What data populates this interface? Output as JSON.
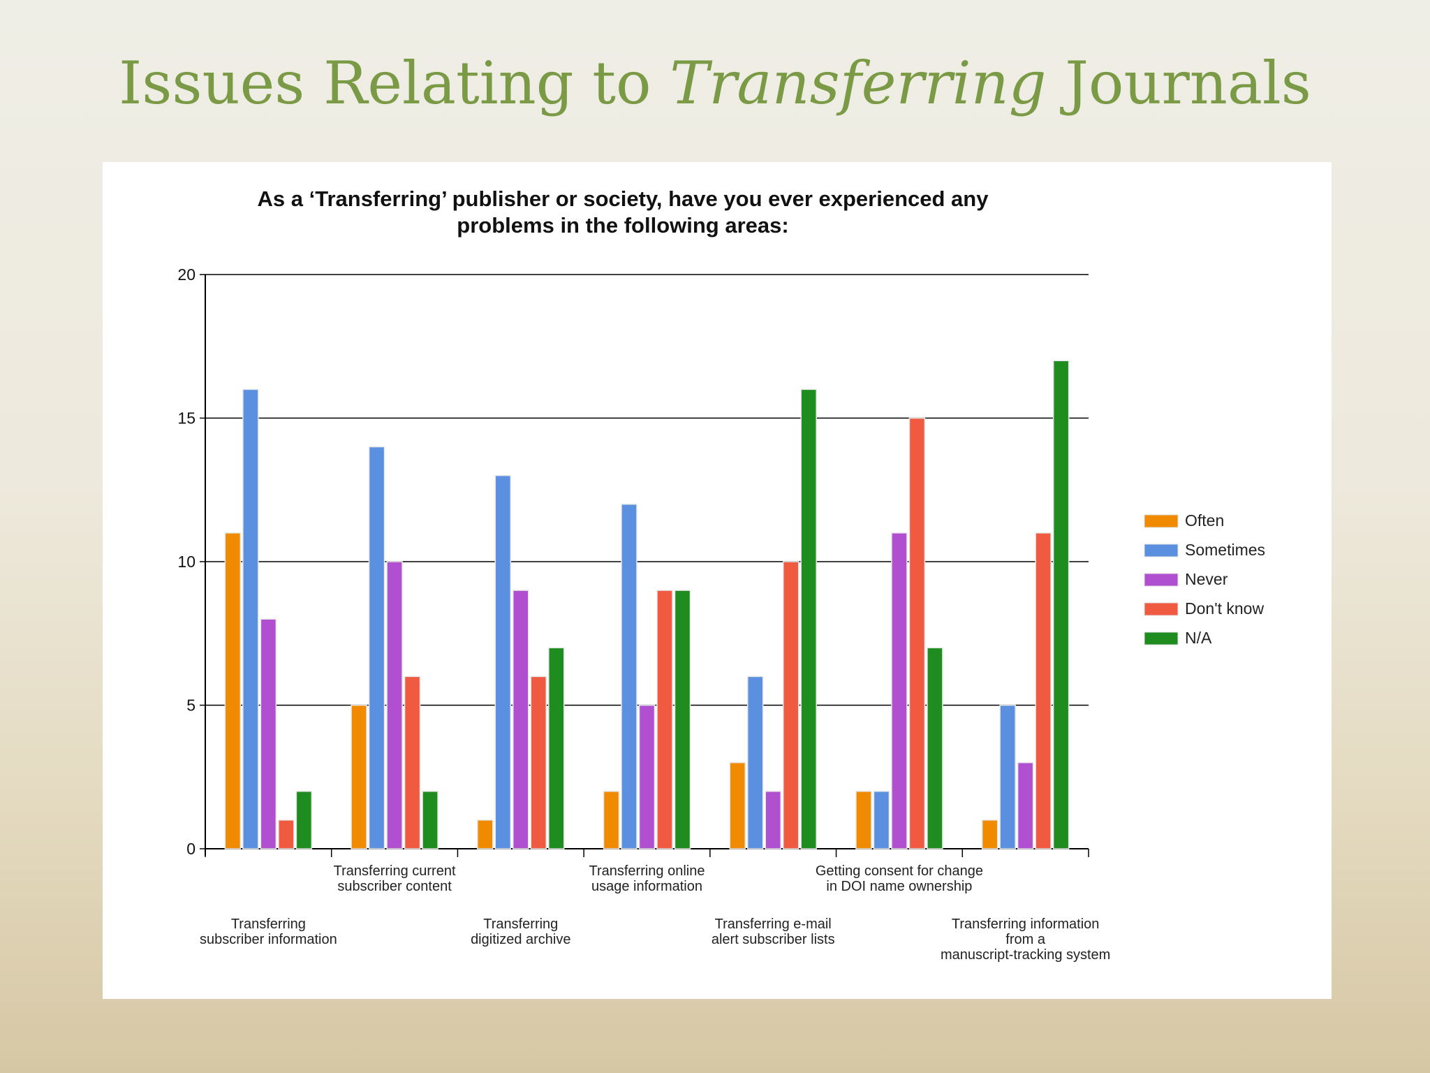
{
  "slide": {
    "title_before": "Issues Relating to ",
    "title_italic": "Transferring",
    "title_after": " Journals"
  },
  "chart_data": {
    "type": "bar",
    "title_line1": "As a ‘Transferring’ publisher or society, have you ever experienced any",
    "title_line2": "problems in the following areas:",
    "xlabel": "",
    "ylabel": "",
    "ylim": [
      0,
      20
    ],
    "yticks": [
      0,
      5,
      10,
      15,
      20
    ],
    "grid": true,
    "legend_position": "right",
    "categories": [
      [
        "Transferring",
        "subscriber information"
      ],
      [
        "Transferring current",
        "subscriber content"
      ],
      [
        "Transferring",
        "digitized archive"
      ],
      [
        "Transferring online",
        "usage information"
      ],
      [
        "Transferring e-mail",
        "alert subscriber lists"
      ],
      [
        "Getting consent for change",
        "in DOI name ownership"
      ],
      [
        "Transferring information",
        "from a",
        "manuscript-tracking system"
      ]
    ],
    "series": [
      {
        "name": "Often",
        "color": "#f08a00",
        "values": [
          11,
          5,
          1,
          2,
          3,
          2,
          1
        ]
      },
      {
        "name": "Sometimes",
        "color": "#5b8fe0",
        "values": [
          16,
          14,
          13,
          12,
          6,
          2,
          5
        ]
      },
      {
        "name": "Never",
        "color": "#b050d0",
        "values": [
          8,
          10,
          9,
          5,
          2,
          11,
          3
        ]
      },
      {
        "name": "Don't know",
        "color": "#f05a40",
        "values": [
          1,
          6,
          6,
          9,
          10,
          15,
          11
        ]
      },
      {
        "name": "N/A",
        "color": "#1e8c1e",
        "values": [
          2,
          2,
          7,
          9,
          16,
          7,
          17
        ]
      }
    ]
  }
}
